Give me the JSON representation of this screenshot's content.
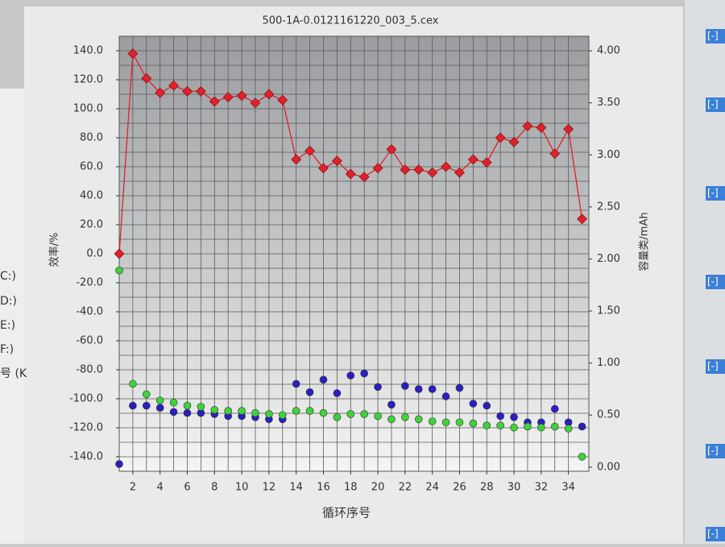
{
  "chart_data": {
    "type": "scatter",
    "title": "500-1A-0.0121161220_003_5.cex",
    "x_label": "循环序号",
    "y_label": "效率/%",
    "y2_label": "容量类/mAh",
    "x": [
      1,
      2,
      3,
      4,
      5,
      6,
      7,
      8,
      9,
      10,
      11,
      12,
      13,
      14,
      15,
      16,
      17,
      18,
      19,
      20,
      21,
      22,
      23,
      24,
      25,
      26,
      27,
      28,
      29,
      30,
      31,
      32,
      33,
      34,
      35
    ],
    "xlim": [
      1,
      35.5
    ],
    "xticks": [
      2,
      4,
      6,
      8,
      10,
      12,
      14,
      16,
      18,
      20,
      22,
      24,
      26,
      28,
      30,
      32,
      34
    ],
    "ylim": [
      -150,
      150
    ],
    "yticks": [
      {
        "value": 140,
        "label": "140.0"
      },
      {
        "value": 120,
        "label": "120.0"
      },
      {
        "value": 100,
        "label": "100.0"
      },
      {
        "value": 80,
        "label": "80.0"
      },
      {
        "value": 60,
        "label": "60.0"
      },
      {
        "value": 40,
        "label": "40.0"
      },
      {
        "value": 20,
        "label": "20.0"
      },
      {
        "value": 0,
        "label": "0.0"
      },
      {
        "value": -20,
        "label": "-20.0"
      },
      {
        "value": -40,
        "label": "-40.0"
      },
      {
        "value": -60,
        "label": "-60.0"
      },
      {
        "value": -80,
        "label": "-80.0"
      },
      {
        "value": -100,
        "label": "-100.0"
      },
      {
        "value": -120,
        "label": "-120.0"
      },
      {
        "value": -140,
        "label": "-140.0"
      }
    ],
    "y2lim": [
      -0.04,
      4.14
    ],
    "y2ticks": [
      {
        "value": 4,
        "label": "4.00"
      },
      {
        "value": 3.5,
        "label": "3.50"
      },
      {
        "value": 3,
        "label": "3.00"
      },
      {
        "value": 2.5,
        "label": "2.50"
      },
      {
        "value": 2,
        "label": "2.00"
      },
      {
        "value": 1.5,
        "label": "1.50"
      },
      {
        "value": 1,
        "label": "1.00"
      },
      {
        "value": 0.5,
        "label": "0.50"
      },
      {
        "value": 0,
        "label": "0.00"
      }
    ],
    "grid": true,
    "series": [
      {
        "color": "#e0202a",
        "marker": "diamond",
        "line": true,
        "axis": "y",
        "values": [
          0,
          138,
          121,
          111,
          116,
          112,
          112,
          105,
          108,
          109,
          104,
          110,
          106,
          65,
          71,
          59,
          64,
          55,
          53,
          59,
          72,
          58,
          58,
          56,
          60,
          56,
          65,
          63,
          80,
          77,
          88,
          87,
          69,
          86,
          24
        ]
      },
      {
        "color": "#2a1fc0",
        "marker": "circle",
        "line": false,
        "axis": "y2",
        "values": [
          0.03,
          0.59,
          0.59,
          0.57,
          0.53,
          0.52,
          0.52,
          0.51,
          0.49,
          0.49,
          0.48,
          0.46,
          0.46,
          0.8,
          0.72,
          0.84,
          0.71,
          0.88,
          0.9,
          0.77,
          0.6,
          0.78,
          0.75,
          0.75,
          0.68,
          0.76,
          0.61,
          0.59,
          0.49,
          0.48,
          0.43,
          0.43,
          0.56,
          0.43,
          0.39
        ]
      },
      {
        "color": "#3fd23a",
        "marker": "circle",
        "line": false,
        "axis": "y2",
        "values": [
          1.89,
          0.8,
          0.7,
          0.64,
          0.62,
          0.59,
          0.58,
          0.55,
          0.54,
          0.54,
          0.52,
          0.51,
          0.5,
          0.54,
          0.54,
          0.52,
          0.48,
          0.51,
          0.51,
          0.49,
          0.46,
          0.48,
          0.46,
          0.44,
          0.43,
          0.43,
          0.42,
          0.4,
          0.4,
          0.38,
          0.39,
          0.38,
          0.39,
          0.37,
          0.1
        ]
      }
    ]
  },
  "sidebar": {
    "drives": [
      "C:)",
      "D:)",
      "E:)",
      "F:)",
      "号 (K"
    ],
    "buttons": [
      "[-]",
      "[-]",
      "[-]",
      "[-]",
      "[-]",
      "[-]",
      "[-]"
    ]
  }
}
